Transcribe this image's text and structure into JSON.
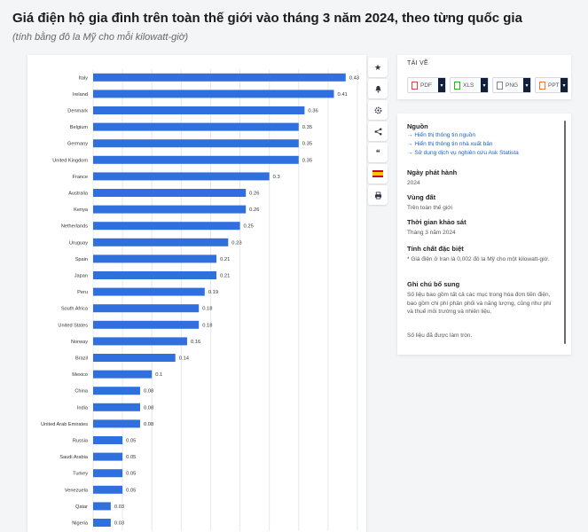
{
  "header": {
    "title": "Giá điện hộ gia đình trên toàn thế giới vào tháng 3 năm 2024, theo từng quốc gia",
    "subtitle": "(tính bằng đô la Mỹ cho mỗi kilowatt-giờ)"
  },
  "colors": {
    "bar": "#2f6fde",
    "grid": "#e6e8ec",
    "label": "#333333"
  },
  "chart_data": {
    "type": "bar",
    "orientation": "horizontal",
    "title": "Giá điện hộ gia đình trên toàn thế giới vào tháng 3 năm 2024, theo từng quốc gia",
    "unit": "USD per kWh",
    "xlim": [
      0,
      0.45
    ],
    "grid": true,
    "categories": [
      "Italy",
      "Ireland",
      "Denmark",
      "Belgium",
      "Germany",
      "United Kingdom",
      "France",
      "Australia",
      "Kenya",
      "Netherlands",
      "Uruguay",
      "Spain",
      "Japan",
      "Peru",
      "South Africa",
      "United States",
      "Norway",
      "Brazil",
      "Mexico",
      "China",
      "India",
      "United Arab Emirates",
      "Russia",
      "Saudi Arabia",
      "Turkey",
      "Venezuela",
      "Qatar",
      "Nigeria"
    ],
    "values": [
      0.43,
      0.41,
      0.36,
      0.35,
      0.35,
      0.35,
      0.3,
      0.26,
      0.26,
      0.25,
      0.23,
      0.21,
      0.21,
      0.19,
      0.18,
      0.18,
      0.16,
      0.14,
      0.1,
      0.08,
      0.08,
      0.08,
      0.05,
      0.05,
      0.05,
      0.05,
      0.03,
      0.03
    ],
    "value_labels": [
      "0.43",
      "0.41",
      "0.36",
      "0.35",
      "0.35",
      "0.35",
      "0.3",
      "0.26",
      "0.26",
      "0.25",
      "0.23",
      "0.21",
      "0.21",
      "0.19",
      "0.18",
      "0.18",
      "0.16",
      "0.14",
      "0.1",
      "0.08",
      "0.08",
      "0.08",
      "0.05",
      "0.05",
      "0.05",
      "0.05",
      "0.03",
      "0.03"
    ]
  },
  "toolbar": {
    "icons": [
      "star-icon",
      "bell-icon",
      "gear-icon",
      "share-icon",
      "quote-icon",
      "flag-spain-icon",
      "print-icon"
    ],
    "quote_glyph": "❝"
  },
  "download": {
    "title": "TẢI VỀ",
    "buttons": [
      "PDF",
      "XLS",
      "PNG",
      "PPT"
    ]
  },
  "info": {
    "source_heading": "Nguồn",
    "source_links": [
      "Hiển thị thông tin nguồn",
      "Hiển thị thông tin nhà xuất bản",
      "Sử dụng dịch vụ nghiên cứu Ask Statista"
    ],
    "release_heading": "Ngày phát hành",
    "release_value": "2024",
    "region_heading": "Vùng đất",
    "region_value": "Trên toàn thế giới",
    "survey_heading": "Thời gian khảo sát",
    "survey_value": "Tháng 3 năm 2024",
    "special_heading": "Tính chất đặc biệt",
    "special_value": "* Giá điện ở Iran là 0,002 đô la Mỹ cho một kilowatt-giờ.",
    "notes_heading": "Ghi chú bổ sung",
    "notes_value": "Số liệu bao gồm tất cả các mục trong hóa đơn tiền điện, bao gồm chi phí phân phối và năng lượng, cũng như phí và thuế môi trường và nhiên liệu.",
    "rounding_note": "Số liệu đã được làm tròn."
  }
}
